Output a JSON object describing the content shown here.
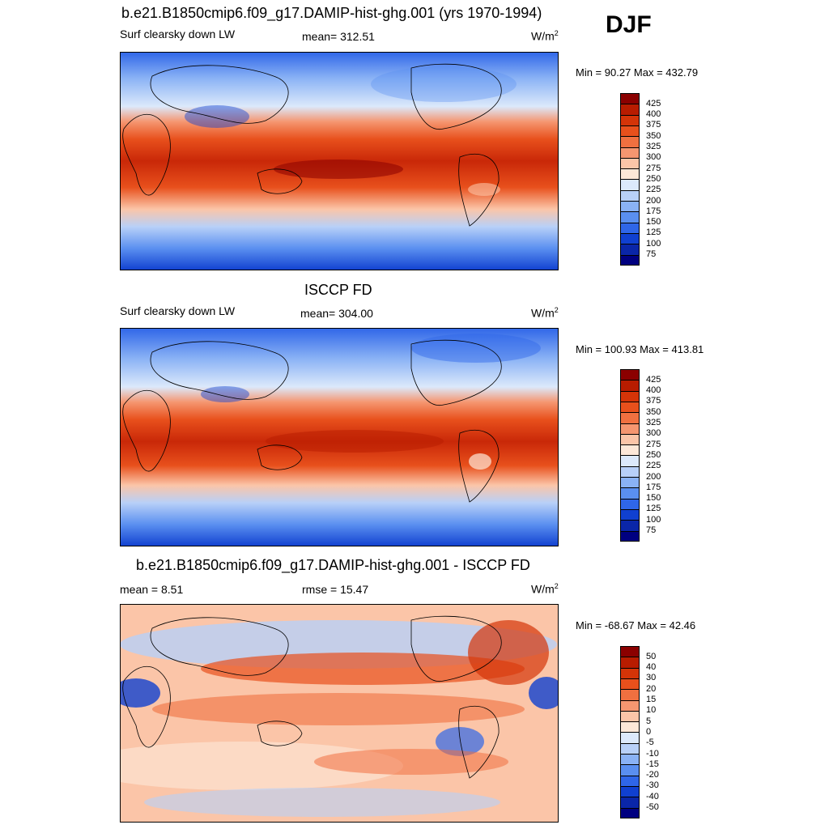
{
  "season": "DJF",
  "units_base": "W/m",
  "units_exp": "2",
  "panels": [
    {
      "title": "b.e21.B1850cmip6.f09_g17.DAMIP-hist-ghg.001 (yrs 1970-1994)",
      "left_label": "Surf clearsky down LW",
      "center_label": "mean= 312.51",
      "minmax": "Min =  90.27 Max = 432.79",
      "kind": "abs"
    },
    {
      "title": "ISCCP FD",
      "left_label": "Surf clearsky down LW",
      "center_label": "mean= 304.00",
      "minmax": "Min = 100.93 Max = 413.81",
      "kind": "abs"
    },
    {
      "title": "b.e21.B1850cmip6.f09_g17.DAMIP-hist-ghg.001 - ISCCP FD",
      "left_label": "mean =   8.51",
      "center_label": "rmse =  15.47",
      "minmax": "Min = -68.67 Max =  42.46",
      "kind": "diff"
    }
  ],
  "colorbars": {
    "abs": {
      "labels": [
        "425",
        "400",
        "375",
        "350",
        "325",
        "300",
        "275",
        "250",
        "225",
        "200",
        "175",
        "150",
        "125",
        "100",
        "75"
      ],
      "colors": [
        "#8b0000",
        "#b81c00",
        "#d43408",
        "#e8501c",
        "#f07040",
        "#f59670",
        "#fbc5a8",
        "#fde8d8",
        "#dce9fb",
        "#b8d0f8",
        "#8ab2f5",
        "#5a8ff0",
        "#2f66e8",
        "#1040d0",
        "#0a26a8",
        "#000080"
      ]
    },
    "diff": {
      "labels": [
        "50",
        "40",
        "30",
        "20",
        "15",
        "10",
        "5",
        "0",
        "-5",
        "-10",
        "-15",
        "-20",
        "-30",
        "-40",
        "-50"
      ],
      "colors": [
        "#8b0000",
        "#b81c00",
        "#d43408",
        "#e8501c",
        "#f07040",
        "#f59670",
        "#fbc5a8",
        "#fde8d8",
        "#dce9fb",
        "#b8d0f8",
        "#8ab2f5",
        "#5a8ff0",
        "#2f66e8",
        "#1040d0",
        "#0a26a8",
        "#000080"
      ]
    }
  }
}
